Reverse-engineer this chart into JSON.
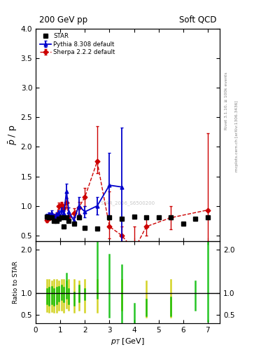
{
  "title_left": "200 GeV pp",
  "title_right": "Soft QCD",
  "ylabel_main": "$\\bar{p}$ / p",
  "ylabel_ratio": "Ratio to STAR",
  "xlabel": "$p_T$ [GeV]",
  "right_label_top": "Rivet 3.1.10, ≥ 100k events",
  "right_label_bottom": "mcplots.cern.ch [arXiv:1306.3436]",
  "watermark": "STAR_2006_S6500200",
  "ylim_main": [
    0.4,
    4.0
  ],
  "ylim_ratio": [
    0.3,
    2.2
  ],
  "xlim": [
    0.0,
    7.5
  ],
  "star_x": [
    0.45,
    0.55,
    0.65,
    0.75,
    0.85,
    0.95,
    1.05,
    1.15,
    1.25,
    1.35,
    1.55,
    1.75,
    2.0,
    2.5,
    3.0,
    3.5,
    4.0,
    4.5,
    5.0,
    5.5,
    6.0,
    6.5,
    7.0
  ],
  "star_y": [
    0.82,
    0.8,
    0.8,
    0.75,
    0.75,
    0.78,
    0.8,
    0.65,
    0.8,
    0.75,
    0.7,
    0.8,
    0.63,
    0.62,
    0.8,
    0.78,
    0.82,
    0.8,
    0.8,
    0.8,
    0.7,
    0.78,
    0.8
  ],
  "pythia_x": [
    0.45,
    0.55,
    0.65,
    0.75,
    0.85,
    0.95,
    1.05,
    1.15,
    1.25,
    1.35,
    1.55,
    1.75,
    2.0,
    2.5,
    3.0,
    3.5
  ],
  "pythia_y": [
    0.82,
    0.85,
    0.88,
    0.82,
    0.85,
    0.88,
    0.92,
    0.88,
    1.25,
    0.9,
    0.75,
    1.0,
    0.9,
    1.0,
    1.35,
    1.32
  ],
  "pythia_yerr_lo": [
    0.04,
    0.04,
    0.04,
    0.04,
    0.04,
    0.04,
    0.05,
    0.05,
    0.12,
    0.07,
    0.07,
    0.15,
    0.1,
    0.15,
    0.55,
    1.0
  ],
  "pythia_yerr_hi": [
    0.04,
    0.04,
    0.04,
    0.04,
    0.04,
    0.04,
    0.05,
    0.05,
    0.12,
    0.07,
    0.07,
    0.15,
    0.1,
    0.15,
    0.55,
    1.0
  ],
  "sherpa_x": [
    0.45,
    0.55,
    0.65,
    0.75,
    0.85,
    0.95,
    1.05,
    1.15,
    1.25,
    1.35,
    1.55,
    1.75,
    2.0,
    2.5,
    3.0,
    3.5,
    4.0,
    4.5,
    5.5,
    7.0
  ],
  "sherpa_y": [
    0.76,
    0.8,
    0.83,
    0.8,
    0.84,
    1.0,
    1.02,
    0.96,
    1.06,
    0.82,
    0.88,
    0.97,
    1.15,
    1.75,
    0.65,
    0.5,
    0.25,
    0.65,
    0.8,
    0.93
  ],
  "sherpa_yerr_lo": [
    0.04,
    0.04,
    0.04,
    0.04,
    0.04,
    0.05,
    0.05,
    0.05,
    0.08,
    0.06,
    0.08,
    0.1,
    0.15,
    0.2,
    0.2,
    0.15,
    0.15,
    0.15,
    0.2,
    1.2
  ],
  "sherpa_yerr_hi": [
    0.04,
    0.04,
    0.04,
    0.04,
    0.04,
    0.05,
    0.05,
    0.05,
    0.08,
    0.06,
    0.08,
    0.1,
    0.15,
    0.6,
    0.6,
    0.15,
    0.4,
    0.15,
    0.2,
    1.3
  ],
  "ratio_yellow_x": [
    0.45,
    0.55,
    0.65,
    0.75,
    0.85,
    0.95,
    1.05,
    1.15,
    1.25,
    1.35,
    1.55,
    1.75,
    2.0,
    2.5,
    3.5,
    4.5,
    5.5
  ],
  "ratio_yellow_lo": [
    0.58,
    0.55,
    0.58,
    0.55,
    0.55,
    0.6,
    0.6,
    0.55,
    0.65,
    0.6,
    0.55,
    0.6,
    0.55,
    0.55,
    0.6,
    0.45,
    0.45
  ],
  "ratio_yellow_hi": [
    1.3,
    1.3,
    1.28,
    1.3,
    1.3,
    1.28,
    1.3,
    1.3,
    1.28,
    1.3,
    1.3,
    1.28,
    1.3,
    1.3,
    1.3,
    1.28,
    1.3
  ],
  "ratio_green_x": [
    0.45,
    0.55,
    0.65,
    0.75,
    0.85,
    0.95,
    1.05,
    1.15,
    1.25,
    1.35,
    1.55,
    1.75,
    2.0,
    2.5,
    3.0,
    3.5,
    4.0,
    4.5,
    5.5,
    6.5,
    7.0
  ],
  "ratio_green_lo": [
    0.75,
    0.72,
    0.75,
    0.72,
    0.75,
    0.82,
    0.85,
    0.8,
    0.88,
    0.75,
    0.72,
    0.8,
    0.85,
    0.88,
    0.45,
    0.32,
    0.18,
    0.48,
    0.48,
    0.6,
    0.35
  ],
  "ratio_green_hi": [
    1.1,
    1.12,
    1.15,
    1.1,
    1.12,
    1.15,
    1.18,
    1.12,
    1.45,
    1.1,
    1.02,
    1.18,
    1.1,
    2.35,
    1.9,
    1.65,
    0.75,
    0.85,
    0.9,
    1.28,
    2.2
  ],
  "star_color": "#000000",
  "pythia_color": "#0000cc",
  "sherpa_color": "#cc0000",
  "background_color": "#ffffff"
}
